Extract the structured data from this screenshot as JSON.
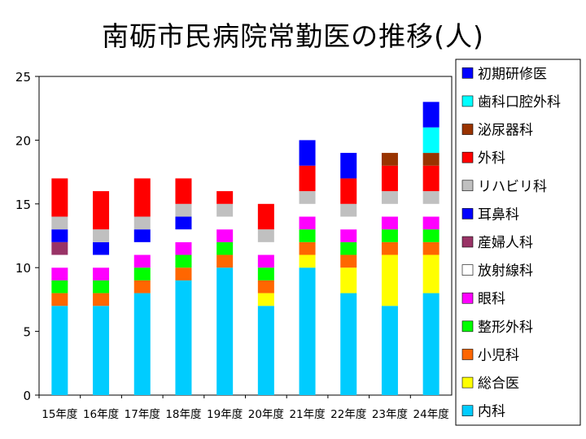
{
  "chart_data": {
    "type": "bar",
    "stacked": true,
    "title": "南砺市民病院常勤医の推移(人)",
    "xlabel": "",
    "ylabel": "",
    "ylim": [
      0,
      25
    ],
    "yticks": [
      0,
      5,
      10,
      15,
      20,
      25
    ],
    "grid": false,
    "legend_position": "right",
    "categories": [
      "15年度",
      "16年度",
      "17年度",
      "18年度",
      "19年度",
      "20年度",
      "21年度",
      "22年度",
      "23年度",
      "24年度"
    ],
    "series": [
      {
        "name": "内科",
        "color": "#00CCFF",
        "values": [
          7,
          7,
          8,
          9,
          10,
          7,
          10,
          8,
          7,
          8
        ]
      },
      {
        "name": "総合医",
        "color": "#FFFF00",
        "values": [
          0,
          0,
          0,
          0,
          0,
          1,
          1,
          2,
          4,
          3
        ]
      },
      {
        "name": "小児科",
        "color": "#FF6600",
        "values": [
          1,
          1,
          1,
          1,
          1,
          1,
          1,
          1,
          1,
          1
        ]
      },
      {
        "name": "整形外科",
        "color": "#00FF00",
        "values": [
          1,
          1,
          1,
          1,
          1,
          1,
          1,
          1,
          1,
          1
        ]
      },
      {
        "name": "眼科",
        "color": "#FF00FF",
        "values": [
          1,
          1,
          1,
          1,
          1,
          1,
          1,
          1,
          1,
          1
        ]
      },
      {
        "name": "放射線科",
        "color": "#FFFFFF",
        "values": [
          1,
          1,
          1,
          1,
          1,
          1,
          1,
          1,
          1,
          1
        ]
      },
      {
        "name": "産婦人科",
        "color": "#993366",
        "values": [
          1,
          0,
          0,
          0,
          0,
          0,
          0,
          0,
          0,
          0
        ]
      },
      {
        "name": "耳鼻科",
        "color": "#0000FF",
        "values": [
          1,
          1,
          1,
          1,
          0,
          0,
          0,
          0,
          0,
          0
        ]
      },
      {
        "name": "リハビリ科",
        "color": "#C0C0C0",
        "values": [
          1,
          1,
          1,
          1,
          1,
          1,
          1,
          1,
          1,
          1
        ]
      },
      {
        "name": "外科",
        "color": "#FF0000",
        "values": [
          3,
          3,
          3,
          2,
          1,
          2,
          2,
          2,
          2,
          2
        ]
      },
      {
        "name": "泌尿器科",
        "color": "#993300",
        "values": [
          0,
          0,
          0,
          0,
          0,
          0,
          0,
          0,
          1,
          1
        ]
      },
      {
        "name": "歯科口腔外科",
        "color": "#00FFFF",
        "values": [
          0,
          0,
          0,
          0,
          0,
          0,
          0,
          0,
          0,
          2
        ]
      },
      {
        "name": "初期研修医",
        "color": "#0000FF",
        "values": [
          0,
          0,
          0,
          0,
          0,
          0,
          2,
          2,
          0,
          2
        ]
      }
    ]
  }
}
